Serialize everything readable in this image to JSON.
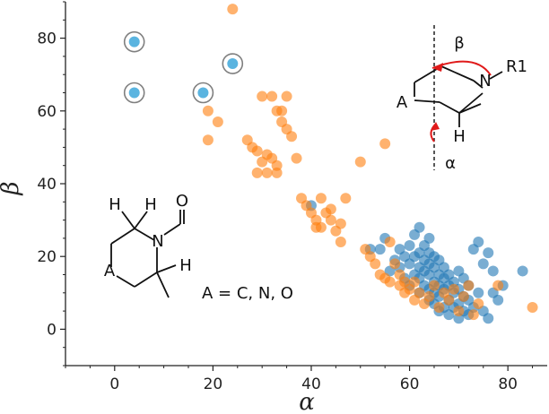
{
  "chart_data": {
    "type": "scatter",
    "title": "",
    "xlabel": "α",
    "ylabel": "β",
    "xlim": [
      -10,
      88
    ],
    "ylim": [
      -10,
      90
    ],
    "xticks": [
      0,
      20,
      40,
      60,
      80
    ],
    "yticks": [
      0,
      20,
      40,
      60,
      80
    ],
    "grid": false,
    "colors": {
      "blue": "#1f77b4",
      "orange": "#ff7f0e",
      "light_blue": "#5ab4e0",
      "ring": "#7f7f7f"
    },
    "series": [
      {
        "color_key": "blue",
        "points": [
          [
            40,
            34
          ],
          [
            52,
            22
          ],
          [
            54,
            22
          ],
          [
            55,
            25
          ],
          [
            56,
            16
          ],
          [
            57,
            19
          ],
          [
            58,
            17
          ],
          [
            58,
            22
          ],
          [
            59,
            14
          ],
          [
            59,
            20
          ],
          [
            60,
            12
          ],
          [
            60,
            18
          ],
          [
            60,
            23
          ],
          [
            61,
            15
          ],
          [
            61,
            20
          ],
          [
            61,
            26
          ],
          [
            62,
            10
          ],
          [
            62,
            14
          ],
          [
            62,
            17
          ],
          [
            62,
            21
          ],
          [
            62,
            28
          ],
          [
            63,
            12
          ],
          [
            63,
            16
          ],
          [
            63,
            19
          ],
          [
            63,
            23
          ],
          [
            64,
            8
          ],
          [
            64,
            11
          ],
          [
            64,
            15
          ],
          [
            64,
            18
          ],
          [
            64,
            21
          ],
          [
            64,
            25
          ],
          [
            65,
            7
          ],
          [
            65,
            10
          ],
          [
            65,
            13
          ],
          [
            65,
            17
          ],
          [
            65,
            20
          ],
          [
            66,
            5
          ],
          [
            66,
            9
          ],
          [
            66,
            12
          ],
          [
            66,
            15
          ],
          [
            66,
            19
          ],
          [
            67,
            6
          ],
          [
            67,
            11
          ],
          [
            67,
            14
          ],
          [
            67,
            17
          ],
          [
            68,
            4
          ],
          [
            68,
            8
          ],
          [
            68,
            12
          ],
          [
            68,
            15
          ],
          [
            69,
            6
          ],
          [
            69,
            10
          ],
          [
            69,
            13
          ],
          [
            70,
            3
          ],
          [
            70,
            7
          ],
          [
            70,
            11
          ],
          [
            70,
            16
          ],
          [
            71,
            5
          ],
          [
            71,
            9
          ],
          [
            71,
            14
          ],
          [
            72,
            4
          ],
          [
            72,
            8
          ],
          [
            72,
            12
          ],
          [
            73,
            6
          ],
          [
            73,
            22
          ],
          [
            74,
            10
          ],
          [
            74,
            24
          ],
          [
            75,
            5
          ],
          [
            75,
            18
          ],
          [
            76,
            3
          ],
          [
            76,
            21
          ],
          [
            77,
            10
          ],
          [
            77,
            16
          ],
          [
            78,
            8
          ],
          [
            79,
            12
          ],
          [
            83,
            16
          ]
        ]
      },
      {
        "color_key": "orange",
        "points": [
          [
            24,
            88
          ],
          [
            19,
            60
          ],
          [
            19,
            52
          ],
          [
            21,
            57
          ],
          [
            27,
            52
          ],
          [
            28,
            50
          ],
          [
            29,
            49
          ],
          [
            29,
            43
          ],
          [
            30,
            46
          ],
          [
            30,
            64
          ],
          [
            31,
            48
          ],
          [
            31,
            43
          ],
          [
            32,
            64
          ],
          [
            32,
            47
          ],
          [
            33,
            45
          ],
          [
            33,
            43
          ],
          [
            33,
            60
          ],
          [
            34,
            57
          ],
          [
            34,
            60
          ],
          [
            35,
            64
          ],
          [
            35,
            55
          ],
          [
            36,
            53
          ],
          [
            37,
            47
          ],
          [
            38,
            36
          ],
          [
            39,
            34
          ],
          [
            40,
            32
          ],
          [
            41,
            30
          ],
          [
            41,
            28
          ],
          [
            42,
            28
          ],
          [
            42,
            36
          ],
          [
            43,
            32
          ],
          [
            44,
            33
          ],
          [
            44,
            30
          ],
          [
            45,
            27
          ],
          [
            46,
            29
          ],
          [
            46,
            24
          ],
          [
            47,
            36
          ],
          [
            50,
            46
          ],
          [
            51,
            22
          ],
          [
            52,
            20
          ],
          [
            53,
            18
          ],
          [
            54,
            15
          ],
          [
            55,
            51
          ],
          [
            55,
            14
          ],
          [
            56,
            24
          ],
          [
            56,
            13
          ],
          [
            57,
            18
          ],
          [
            58,
            12
          ],
          [
            58,
            15
          ],
          [
            59,
            10
          ],
          [
            59,
            13
          ],
          [
            60,
            11
          ],
          [
            61,
            8
          ],
          [
            61,
            13
          ],
          [
            62,
            10
          ],
          [
            63,
            7
          ],
          [
            64,
            9
          ],
          [
            65,
            12
          ],
          [
            66,
            6
          ],
          [
            67,
            10
          ],
          [
            68,
            8
          ],
          [
            69,
            11
          ],
          [
            70,
            5
          ],
          [
            71,
            9
          ],
          [
            72,
            12
          ],
          [
            73,
            4
          ],
          [
            74,
            7
          ],
          [
            78,
            12
          ],
          [
            85,
            6
          ]
        ]
      },
      {
        "color_key": "light_blue",
        "ringed": true,
        "points": [
          [
            4,
            79
          ],
          [
            4,
            65
          ],
          [
            18,
            65
          ],
          [
            24,
            73
          ]
        ]
      }
    ],
    "annotations": {
      "left_mol": {
        "h1": "H",
        "h2": "H",
        "n": "N",
        "o": "O",
        "a": "A",
        "h3": "H"
      },
      "formula_note": "A = C, N, O",
      "right_mol": {
        "beta": "β",
        "n": "N",
        "r1": "R1",
        "a": "A",
        "h": "H",
        "alpha": "α"
      }
    }
  }
}
